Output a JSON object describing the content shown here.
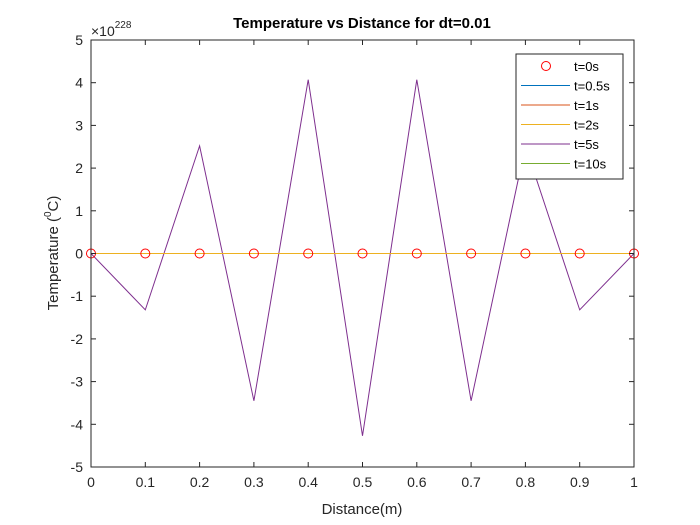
{
  "chart_data": {
    "type": "line",
    "title": "Temperature vs Distance for dt=0.01",
    "xlabel": "Distance(m)",
    "ylabel_prefix": "Temperature (",
    "ylabel_sup": "0",
    "ylabel_suffix": "C)",
    "y_exponent_base": "×10",
    "y_exponent_power": "228",
    "xlim": [
      0,
      1
    ],
    "ylim": [
      -5,
      5
    ],
    "xticks": [
      0,
      0.1,
      0.2,
      0.3,
      0.4,
      0.5,
      0.6,
      0.7,
      0.8,
      0.9,
      1
    ],
    "xtick_labels": [
      "0",
      "0.1",
      "0.2",
      "0.3",
      "0.4",
      "0.5",
      "0.6",
      "0.7",
      "0.8",
      "0.9",
      "1"
    ],
    "yticks": [
      -5,
      -4,
      -3,
      -2,
      -1,
      0,
      1,
      2,
      3,
      4,
      5
    ],
    "ytick_labels": [
      "-5",
      "-4",
      "-3",
      "-2",
      "-1",
      "0",
      "1",
      "2",
      "3",
      "4",
      "5"
    ],
    "grid": false,
    "legend_position": "top-right",
    "x": [
      0,
      0.1,
      0.2,
      0.3,
      0.4,
      0.5,
      0.6,
      0.7,
      0.8,
      0.9,
      1
    ],
    "series": [
      {
        "name": "t=0s",
        "style": "marker",
        "color": "#ff0000",
        "values": [
          0,
          0,
          0,
          0,
          0,
          0,
          0,
          0,
          0,
          0,
          0
        ]
      },
      {
        "name": "t=0.5s",
        "style": "line",
        "color": "#0072bd",
        "values": [
          0,
          0,
          0,
          0,
          0,
          0,
          0,
          0,
          0,
          0,
          0
        ]
      },
      {
        "name": "t=1s",
        "style": "line",
        "color": "#d95319",
        "values": [
          0,
          0,
          0,
          0,
          0,
          0,
          0,
          0,
          0,
          0,
          0
        ]
      },
      {
        "name": "t=2s",
        "style": "line",
        "color": "#edb120",
        "values": [
          0,
          0,
          0,
          0,
          0,
          0,
          0,
          0,
          0,
          0,
          0
        ]
      },
      {
        "name": "t=5s",
        "style": "line",
        "color": "#7e2f8e",
        "values": [
          0,
          -1.32,
          2.52,
          -3.45,
          4.07,
          -4.27,
          4.07,
          -3.45,
          2.52,
          -1.32,
          0
        ]
      },
      {
        "name": "t=10s",
        "style": "line",
        "color": "#77ac30",
        "values": [
          0,
          0,
          0,
          0,
          0,
          0,
          0,
          0,
          0,
          0,
          0
        ]
      }
    ]
  }
}
